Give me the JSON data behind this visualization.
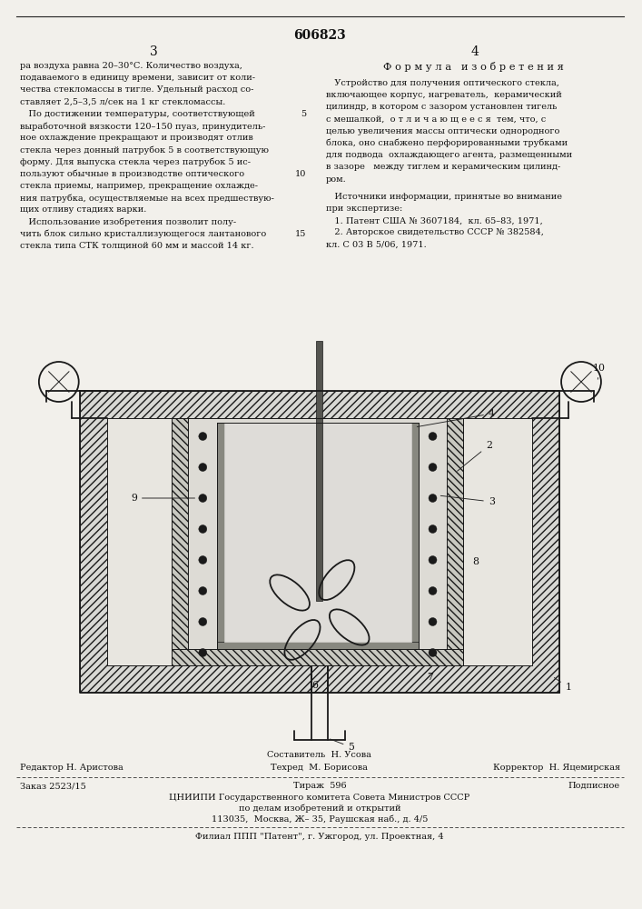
{
  "patent_number": "606823",
  "page_left": "3",
  "page_right": "4",
  "section_title": "Ф о р м у л а   и з о б р е т е н и я",
  "left_text": [
    "ра воздуха равна 20–30°С. Количество воздуха,",
    "подаваемого в единицу времени, зависит от коли-",
    "чества стекломассы в тигле. Удельный расход со-",
    "ставляет 2,5–3,5 л/сек на 1 кг стекломассы.",
    "   По достижении температуры, соответствующей",
    "выработочной вязкости 120–150 пуаз, принудитель-",
    "ное охлаждение прекращают и производят отлив",
    "стекла через донный патрубок 5 в соответствующую",
    "форму. Для выпуска стекла через патрубок 5 ис-",
    "пользуют обычные в производстве оптического",
    "стекла приемы, например, прекращение охлажде-",
    "ния патрубка, осуществляемые на всех предшествую-",
    "щих отливу стадиях варки.",
    "   Использование изобретения позволит полу-",
    "чить блок сильно кристаллизующегося лантанового",
    "стекла типа СТК толщиной 60 мм и массой 14 кг."
  ],
  "right_text_formula": [
    "   Устройство для получения оптического стекла,",
    "включающее корпус, нагреватель,  керамический",
    "цилиндр, в котором с зазором установлен тигель",
    "с мешалкой,  о т л и ч а ю щ е е с я  тем, что, с",
    "целью увеличения массы оптически однородного",
    "блока, оно снабжено перфорированными трубками",
    "для подвода  охлаждающего агента, размещенными",
    "в зазоре   между тиглем и керамическим цилинд-",
    "ром."
  ],
  "right_text_sources": [
    "   Источники информации, принятые во внимание",
    "при экспертизе:",
    "   1. Патент США № 3607184,  кл. 65–83, 1971,",
    "   2. Авторское свидетельство СССР № 382584,",
    "кл. С 03 В 5/06, 1971."
  ],
  "footer_composer": "Составитель  Н. Усова",
  "footer_line1_left": "Редактор Н. Аристова",
  "footer_line1_center": "Техред  М. Борисова",
  "footer_line1_right": "Корректор  Н. Яцемирская",
  "footer_order": "Заказ 2523/15",
  "footer_circulation": "Тираж  596",
  "footer_subscription": "Подписное",
  "footer_org1": "ЦНИИПИ Государственного комитета Совета Министров СССР",
  "footer_org2": "по делам изобретений и открытий",
  "footer_address": "113035,  Москва, Ж– 35, Раушская наб., д. 4/5",
  "footer_branch": "Филиал ППП \"Патент\", г. Ужгород, ул. Проектная, 4",
  "bg_color": "#f2f0eb",
  "text_color": "#111111",
  "line_color": "#222222",
  "draw_color": "#1a1a1a"
}
